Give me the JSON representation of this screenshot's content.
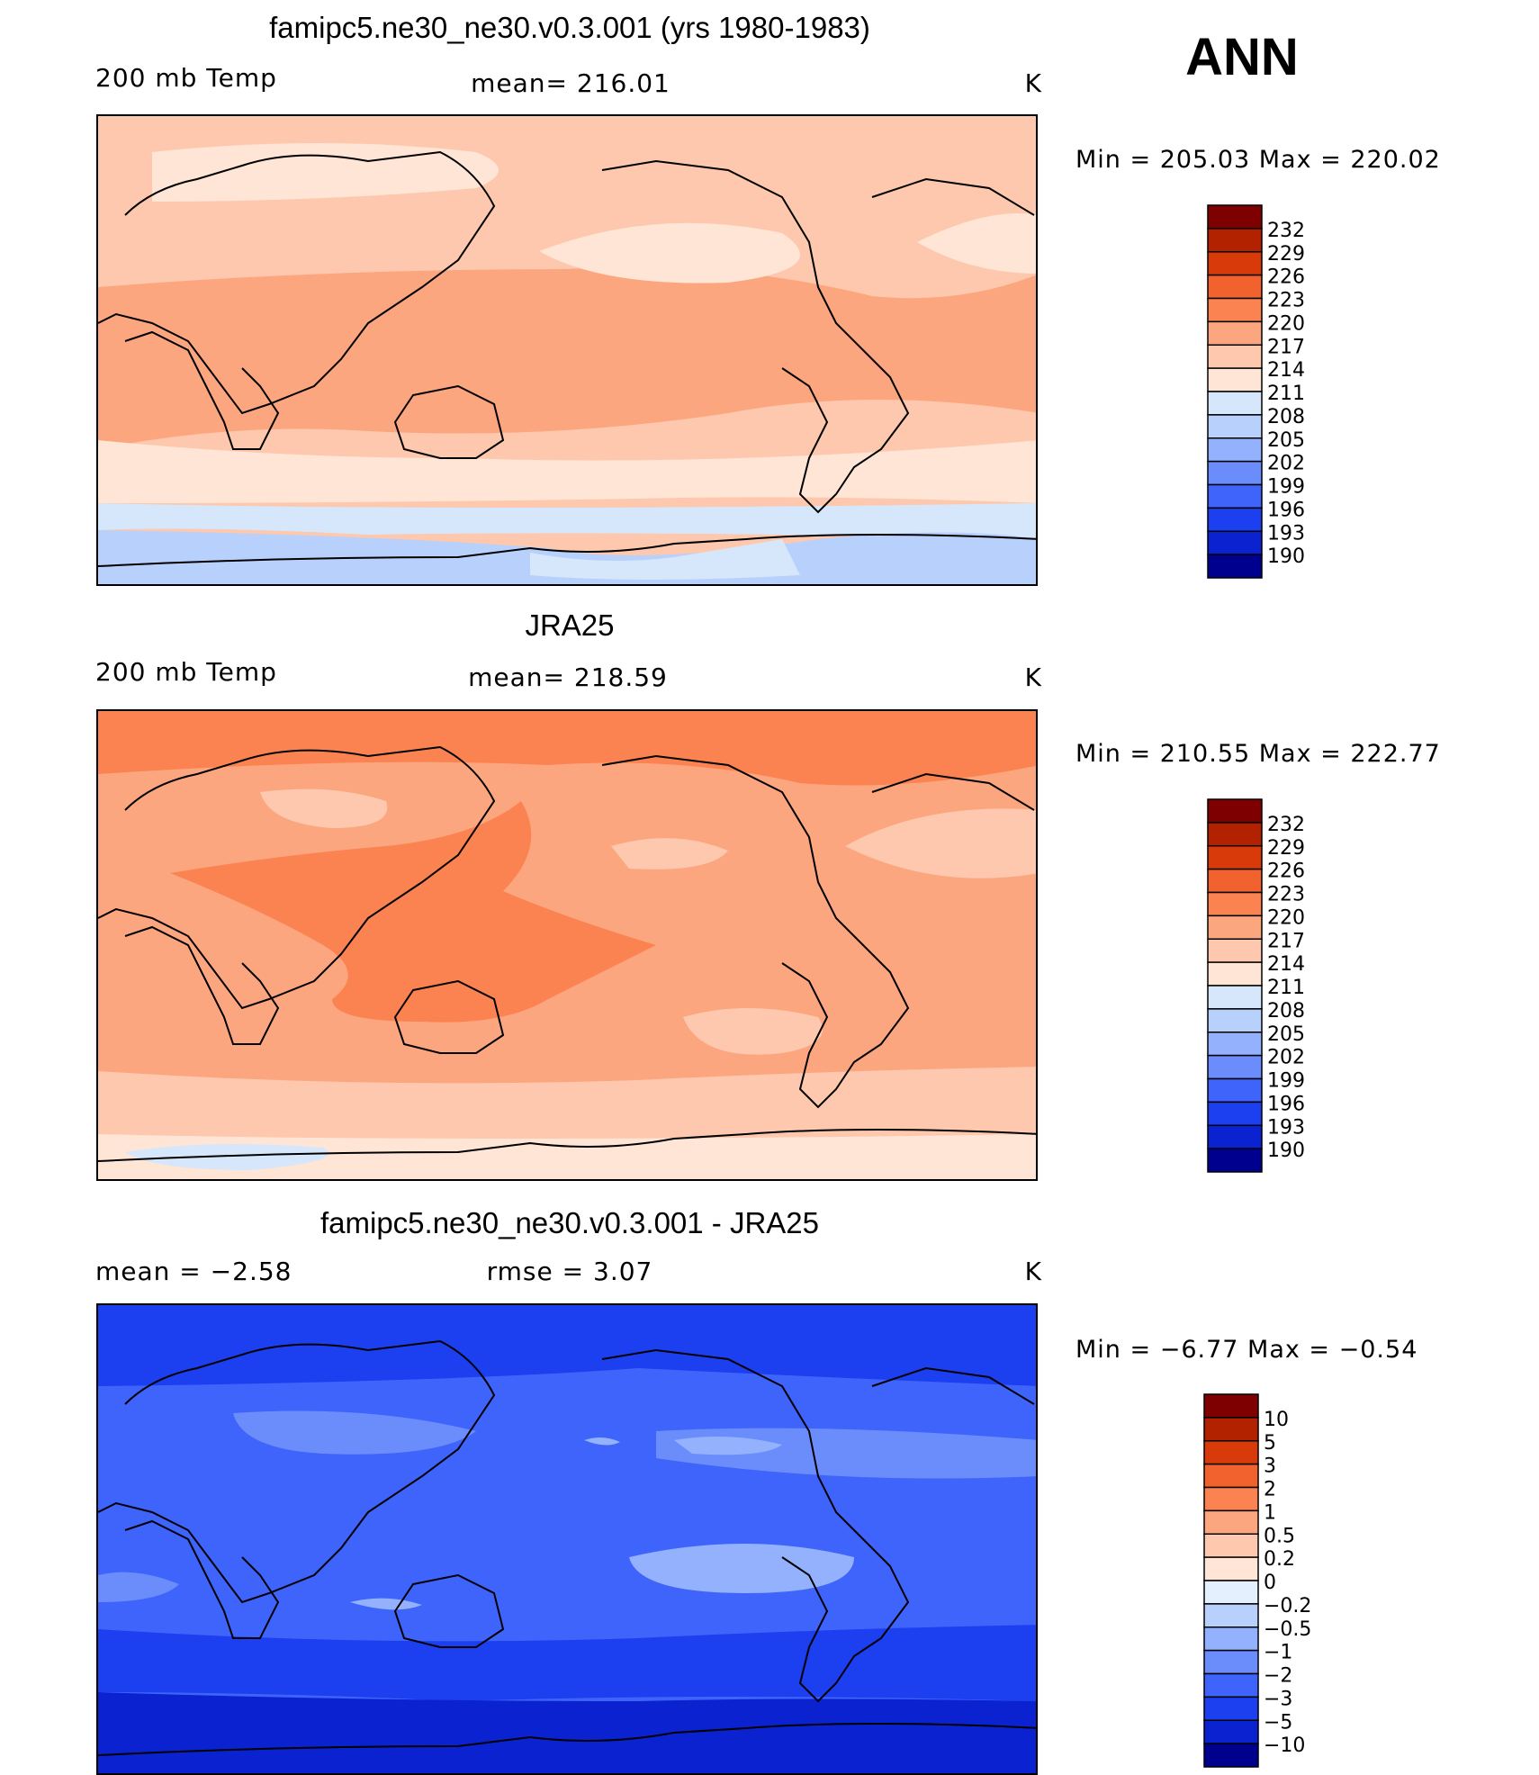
{
  "season": "ANN",
  "palettes": {
    "temp": [
      "#7f0000",
      "#b22200",
      "#d93a0a",
      "#f2622e",
      "#fb8351",
      "#fca680",
      "#fdc8ad",
      "#fee5d5",
      "#d6e7fb",
      "#b7d0fc",
      "#94b1fd",
      "#6b8dfc",
      "#3e64fb",
      "#1c3ff0",
      "#0a22d0",
      "#00008f"
    ],
    "diff": [
      "#7f0000",
      "#b22200",
      "#d93a0a",
      "#f2622e",
      "#fb8351",
      "#fca680",
      "#fdc8ad",
      "#fee5d5",
      "#e4f0fd",
      "#b7d0fc",
      "#94b1fd",
      "#6b8dfc",
      "#3e64fb",
      "#1c3ff0",
      "#0a22d0",
      "#00008f"
    ]
  },
  "panels": [
    {
      "title": "famipc5.ne30_ne30.v0.3.001 (yrs 1980-1983)",
      "left_label": "200 mb Temp",
      "center_label": "mean= 216.01",
      "units": "K",
      "minmax": "Min  =  205.03  Max  =  220.02",
      "colorbar_labels": [
        "232",
        "229",
        "226",
        "223",
        "220",
        "217",
        "214",
        "211",
        "208",
        "205",
        "202",
        "199",
        "196",
        "193",
        "190"
      ],
      "field_bands": [
        {
          "color": "#fdc8ad",
          "level": "214-217"
        },
        {
          "color": "#fee5d5",
          "level": "211-214"
        },
        {
          "color": "#fca680",
          "level": "217-220"
        },
        {
          "color": "#d6e7fb",
          "level": "208-211"
        },
        {
          "color": "#b7d0fc",
          "level": "205-208"
        }
      ]
    },
    {
      "title": "JRA25",
      "left_label": "200 mb Temp",
      "center_label": "mean= 218.59",
      "units": "K",
      "minmax": "Min  =  210.55  Max  =  222.77",
      "colorbar_labels": [
        "232",
        "229",
        "226",
        "223",
        "220",
        "217",
        "214",
        "211",
        "208",
        "205",
        "202",
        "199",
        "196",
        "193",
        "190"
      ],
      "field_bands": [
        {
          "color": "#fb8351",
          "level": "220-223"
        },
        {
          "color": "#fca680",
          "level": "217-220"
        },
        {
          "color": "#fdc8ad",
          "level": "214-217"
        },
        {
          "color": "#fee5d5",
          "level": "211-214"
        },
        {
          "color": "#d6e7fb",
          "level": "208-211"
        }
      ]
    },
    {
      "title": "famipc5.ne30_ne30.v0.3.001 - JRA25",
      "left_label": "mean =    −2.58",
      "center_label": "rmse =     3.07",
      "units": "K",
      "minmax": "Min  =   −6.77  Max  =   −0.54",
      "colorbar_labels": [
        "10",
        "5",
        "3",
        "2",
        "1",
        "0.5",
        "0.2",
        "0",
        "−0.2",
        "−0.5",
        "−1",
        "−2",
        "−3",
        "−5",
        "−10"
      ],
      "field_bands": [
        {
          "color": "#1c3ff0",
          "level": "-3 to -5"
        },
        {
          "color": "#3e64fb",
          "level": "-2 to -3"
        },
        {
          "color": "#6b8dfc",
          "level": "-1 to -2"
        },
        {
          "color": "#94b1fd",
          "level": "-0.5 to -1"
        },
        {
          "color": "#0a22d0",
          "level": "-5 to -10"
        }
      ]
    }
  ]
}
